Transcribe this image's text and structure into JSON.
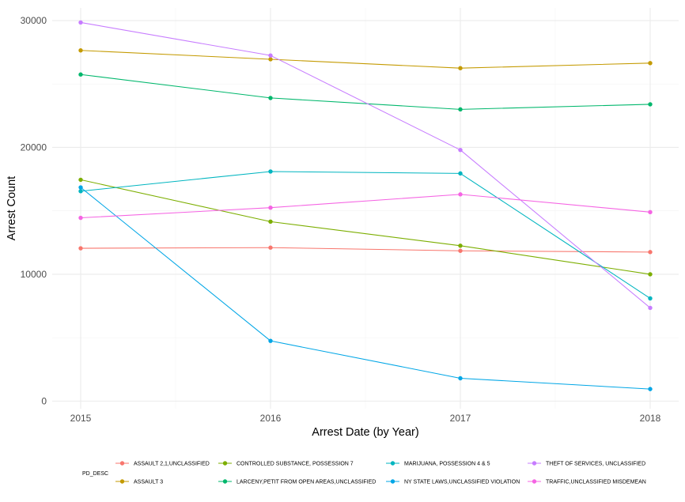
{
  "chart_data": {
    "type": "line",
    "xlabel": "Arrest Date (by Year)",
    "ylabel": "Arrest Count",
    "x": [
      2015,
      2016,
      2017,
      2018
    ],
    "x_tick_labels": [
      "2015",
      "2016",
      "2017",
      "2018"
    ],
    "xlim": [
      2014.85,
      2018.15
    ],
    "ylim": [
      -600,
      31000
    ],
    "y_ticks": [
      0,
      10000,
      20000,
      30000
    ],
    "y_tick_labels": [
      "0",
      "10000",
      "20000",
      "30000"
    ],
    "grid": true,
    "legend_position": "bottom",
    "legend_title": "PD_DESC",
    "series": [
      {
        "name": "ASSAULT 2,1,UNCLASSIFIED",
        "color": "#F8766D",
        "values": [
          12050,
          12100,
          11850,
          11750
        ]
      },
      {
        "name": "ASSAULT 3",
        "color": "#C49A00",
        "values": [
          27650,
          26950,
          26250,
          26650
        ]
      },
      {
        "name": "CONTROLLED SUBSTANCE, POSSESSION 7",
        "color": "#7CAE00",
        "values": [
          17450,
          14150,
          12250,
          10000
        ]
      },
      {
        "name": "LARCENY,PETIT FROM OPEN AREAS,UNCLASSIFIED",
        "color": "#00B76C",
        "values": [
          25750,
          23900,
          23000,
          23400
        ]
      },
      {
        "name": "MARIJUANA, POSSESSION 4 & 5",
        "color": "#00B5C0",
        "values": [
          16550,
          18100,
          17950,
          8100
        ]
      },
      {
        "name": "NY STATE LAWS,UNCLASSIFIED VIOLATION",
        "color": "#00A6E6",
        "values": [
          16850,
          4750,
          1800,
          950
        ]
      },
      {
        "name": "THEFT OF SERVICES, UNCLASSIFIED",
        "color": "#C77CFF",
        "values": [
          29850,
          27250,
          19800,
          7350
        ]
      },
      {
        "name": "TRAFFIC,UNCLASSIFIED MISDEMEAN",
        "color": "#F564E3",
        "values": [
          14450,
          15250,
          16300,
          14900
        ]
      }
    ]
  }
}
